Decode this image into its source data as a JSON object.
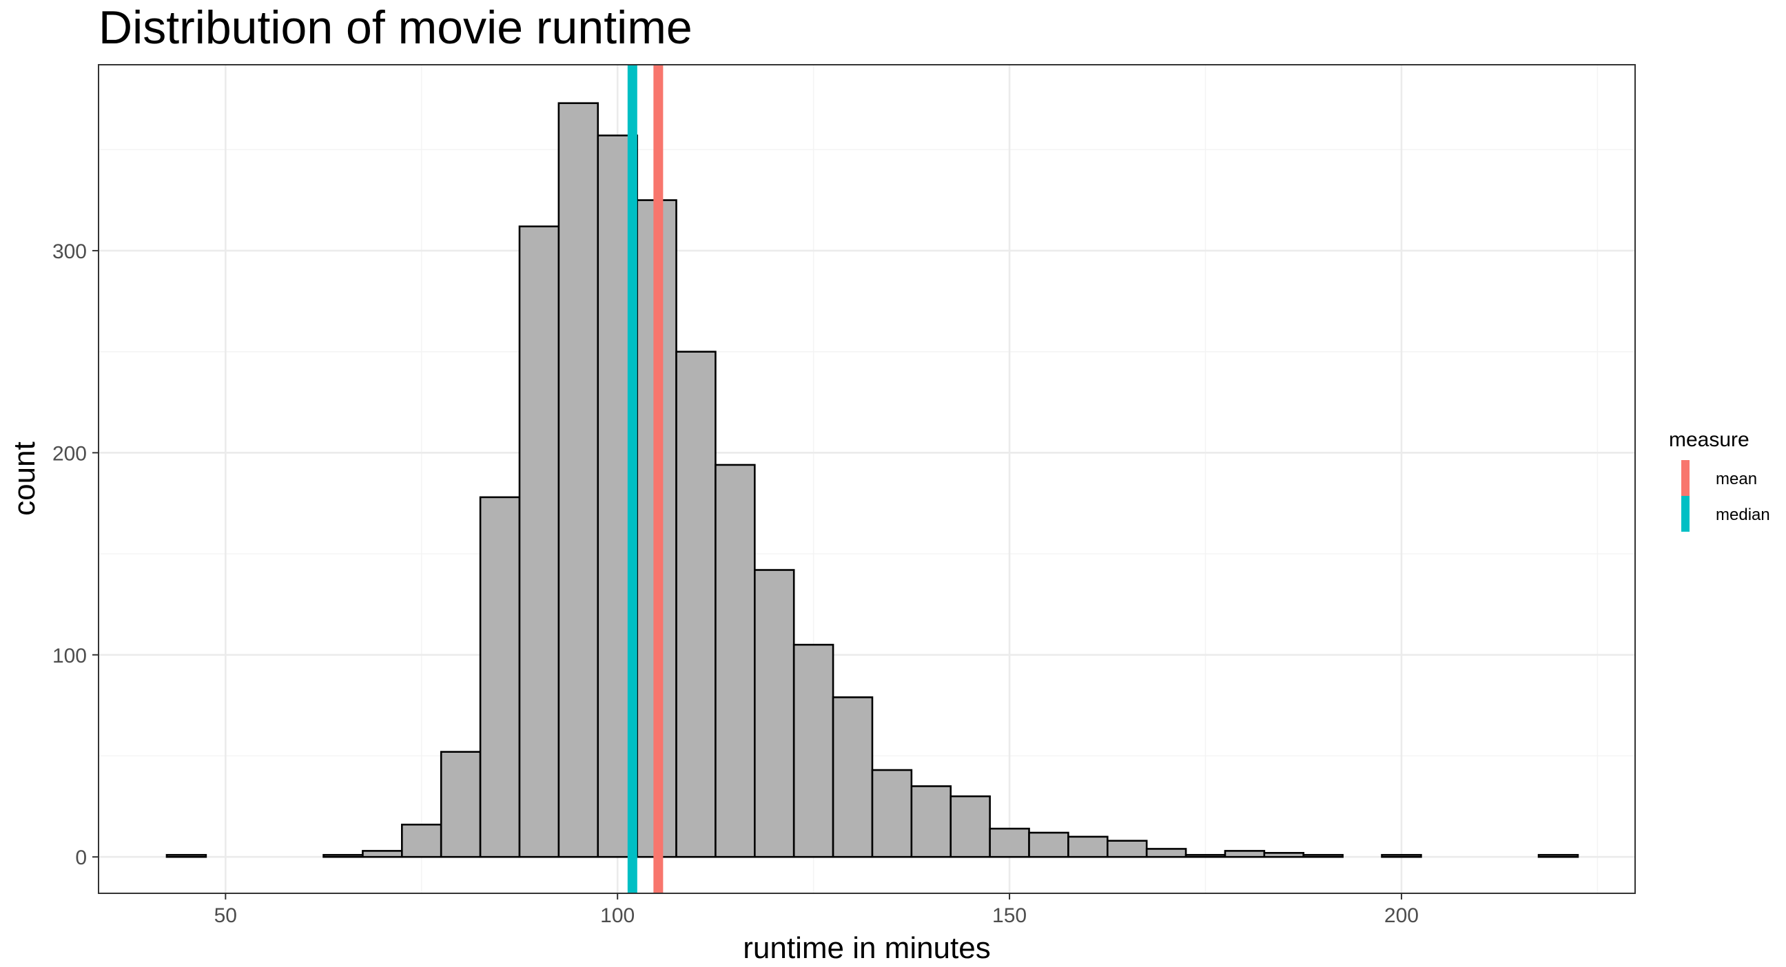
{
  "chart_data": {
    "type": "bar",
    "title": "Distribution of movie runtime",
    "xlabel": "runtime in minutes",
    "ylabel": "count",
    "xlim": [
      33.8,
      229.8
    ],
    "ylim": [
      -18,
      392
    ],
    "grid": true,
    "x_ticks": [
      50,
      100,
      150,
      200
    ],
    "y_ticks": [
      0,
      100,
      200,
      300
    ],
    "x_tick_labels": [
      "50",
      "100",
      "150",
      "200"
    ],
    "y_tick_labels": [
      "0",
      "100",
      "200",
      "300"
    ],
    "bin_width": 5,
    "bins": [
      {
        "start": 42.5,
        "end": 47.5,
        "count": 1
      },
      {
        "start": 47.5,
        "end": 52.5,
        "count": 0
      },
      {
        "start": 52.5,
        "end": 57.5,
        "count": 0
      },
      {
        "start": 57.5,
        "end": 62.5,
        "count": 0
      },
      {
        "start": 62.5,
        "end": 67.5,
        "count": 1
      },
      {
        "start": 67.5,
        "end": 72.5,
        "count": 3
      },
      {
        "start": 72.5,
        "end": 77.5,
        "count": 16
      },
      {
        "start": 77.5,
        "end": 82.5,
        "count": 52
      },
      {
        "start": 82.5,
        "end": 87.5,
        "count": 178
      },
      {
        "start": 87.5,
        "end": 92.5,
        "count": 312
      },
      {
        "start": 92.5,
        "end": 97.5,
        "count": 373
      },
      {
        "start": 97.5,
        "end": 102.5,
        "count": 357
      },
      {
        "start": 102.5,
        "end": 107.5,
        "count": 325
      },
      {
        "start": 107.5,
        "end": 112.5,
        "count": 250
      },
      {
        "start": 112.5,
        "end": 117.5,
        "count": 194
      },
      {
        "start": 117.5,
        "end": 122.5,
        "count": 142
      },
      {
        "start": 122.5,
        "end": 127.5,
        "count": 105
      },
      {
        "start": 127.5,
        "end": 132.5,
        "count": 79
      },
      {
        "start": 132.5,
        "end": 137.5,
        "count": 43
      },
      {
        "start": 137.5,
        "end": 142.5,
        "count": 35
      },
      {
        "start": 142.5,
        "end": 147.5,
        "count": 30
      },
      {
        "start": 147.5,
        "end": 152.5,
        "count": 14
      },
      {
        "start": 152.5,
        "end": 157.5,
        "count": 12
      },
      {
        "start": 157.5,
        "end": 162.5,
        "count": 10
      },
      {
        "start": 162.5,
        "end": 167.5,
        "count": 8
      },
      {
        "start": 167.5,
        "end": 172.5,
        "count": 4
      },
      {
        "start": 172.5,
        "end": 177.5,
        "count": 1
      },
      {
        "start": 177.5,
        "end": 182.5,
        "count": 3
      },
      {
        "start": 182.5,
        "end": 187.5,
        "count": 2
      },
      {
        "start": 187.5,
        "end": 192.5,
        "count": 1
      },
      {
        "start": 192.5,
        "end": 197.5,
        "count": 0
      },
      {
        "start": 197.5,
        "end": 202.5,
        "count": 1
      },
      {
        "start": 202.5,
        "end": 207.5,
        "count": 0
      },
      {
        "start": 207.5,
        "end": 212.5,
        "count": 0
      },
      {
        "start": 212.5,
        "end": 217.5,
        "count": 0
      },
      {
        "start": 217.5,
        "end": 222.5,
        "count": 1
      }
    ],
    "reference_lines": [
      {
        "name": "mean",
        "value": 105.2,
        "color": "#F8766D"
      },
      {
        "name": "median",
        "value": 101.9,
        "color": "#00BFC4"
      }
    ],
    "legend": {
      "title": "measure",
      "position": "right",
      "entries": [
        {
          "label": "mean",
          "color": "#F8766D"
        },
        {
          "label": "median",
          "color": "#00BFC4"
        }
      ]
    }
  }
}
